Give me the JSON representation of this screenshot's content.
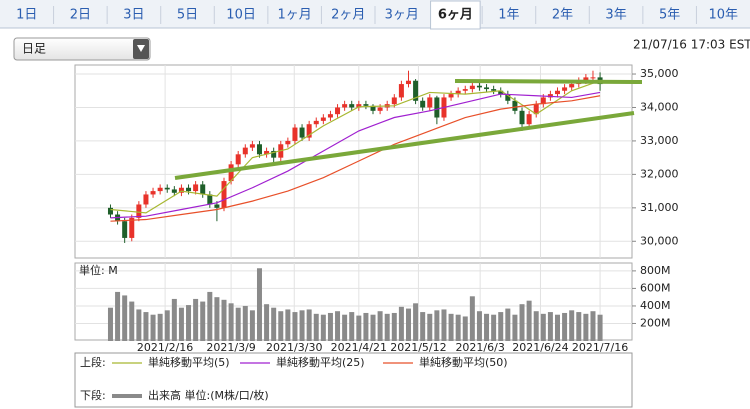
{
  "tabs": [
    "1日",
    "2日",
    "3日",
    "5日",
    "10日",
    "1ヶ月",
    "2ヶ月",
    "3ヶ月",
    "6ヶ月",
    "1年",
    "2年",
    "3年",
    "5年",
    "10年"
  ],
  "selected_tab": 8,
  "dropdown": "日足",
  "timestamp": "21/07/16 17:03 EST",
  "chart_data": [
    {
      "type": "candlestick",
      "legend_label": "上段:",
      "up_color": "#e8322a",
      "down_color": "#1f5f2a",
      "open": [
        31000,
        30800,
        30600,
        30100,
        30700,
        31100,
        31400,
        31500,
        31600,
        31550,
        31450,
        31600,
        31500,
        31700,
        31400,
        31100,
        31000,
        31800,
        32300,
        32600,
        32800,
        32900,
        32600,
        32700,
        32500,
        32900,
        33000,
        33400,
        33100,
        33500,
        33600,
        33700,
        33800,
        34000,
        34100,
        34000,
        34100,
        34050,
        33900,
        34000,
        34100,
        34300,
        34700,
        34800,
        34200,
        34000,
        34300,
        33700,
        34300,
        34400,
        34500,
        34550,
        34650,
        34600,
        34550,
        34500,
        34400,
        34200,
        33900,
        33500,
        33800,
        34100,
        34300,
        34400,
        34500,
        34600,
        34700,
        34800,
        34900,
        34900
      ],
      "high": [
        31100,
        30900,
        30700,
        30800,
        31200,
        31500,
        31600,
        31700,
        31700,
        31650,
        31700,
        31700,
        31800,
        31800,
        31500,
        31200,
        31900,
        32400,
        32700,
        32900,
        33000,
        33000,
        32800,
        32800,
        33000,
        33100,
        33500,
        33500,
        33600,
        33700,
        33800,
        33900,
        34100,
        34200,
        34200,
        34200,
        34200,
        34100,
        34100,
        34200,
        34400,
        34800,
        35100,
        34850,
        34300,
        34400,
        34350,
        34400,
        34500,
        34600,
        34650,
        34750,
        34750,
        34700,
        34650,
        34600,
        34500,
        34300,
        34000,
        33900,
        34200,
        34400,
        34500,
        34600,
        34700,
        34800,
        34900,
        35000,
        35100,
        35050
      ],
      "low": [
        30700,
        30500,
        29950,
        30000,
        30600,
        31000,
        31300,
        31400,
        31450,
        31350,
        31350,
        31400,
        31400,
        31300,
        31000,
        30600,
        30900,
        31700,
        32200,
        32500,
        32700,
        32500,
        32500,
        32300,
        32400,
        32800,
        32900,
        33000,
        33000,
        33400,
        33500,
        33600,
        33700,
        33900,
        33900,
        33900,
        33950,
        33800,
        33800,
        33900,
        34000,
        34200,
        34600,
        34100,
        33900,
        33900,
        33500,
        33600,
        34200,
        34300,
        34400,
        34450,
        34500,
        34450,
        34400,
        34300,
        34100,
        33800,
        33300,
        33400,
        33700,
        34000,
        34200,
        34300,
        34400,
        34500,
        34600,
        34700,
        34800,
        34500
      ],
      "close": [
        30800,
        30600,
        30100,
        30700,
        31100,
        31400,
        31500,
        31600,
        31550,
        31450,
        31600,
        31500,
        31700,
        31400,
        31100,
        31000,
        31800,
        32300,
        32600,
        32800,
        32900,
        32600,
        32700,
        32500,
        32900,
        33000,
        33400,
        33100,
        33500,
        33600,
        33700,
        33800,
        34000,
        34100,
        34000,
        34100,
        34050,
        33900,
        34000,
        34100,
        34300,
        34700,
        34800,
        34200,
        34000,
        34300,
        33700,
        34300,
        34400,
        34500,
        34550,
        34650,
        34600,
        34550,
        34500,
        34400,
        34200,
        33900,
        33500,
        33800,
        34100,
        34300,
        34400,
        34500,
        34600,
        34700,
        34800,
        34900,
        34900,
        34700
      ],
      "series": [
        {
          "name": "単純移動平均(5)",
          "color": "#a8b832",
          "x": [
            0,
            5,
            10,
            15,
            20,
            25,
            30,
            35,
            40,
            45,
            50,
            55,
            60,
            65,
            69
          ],
          "values": [
            30950,
            30850,
            31500,
            31350,
            32500,
            32760,
            33450,
            34020,
            34050,
            34450,
            34400,
            34500,
            33800,
            34500,
            34800
          ]
        },
        {
          "name": "単純移動平均(25)",
          "color": "#a020d0",
          "x": [
            0,
            5,
            10,
            15,
            20,
            25,
            30,
            35,
            40,
            45,
            50,
            55,
            60,
            65,
            69
          ],
          "values": [
            30700,
            30750,
            30950,
            31150,
            31600,
            32100,
            32700,
            33300,
            33700,
            33900,
            34150,
            34400,
            34350,
            34300,
            34450
          ]
        },
        {
          "name": "単純移動平均(50)",
          "color": "#e8502a",
          "x": [
            0,
            5,
            10,
            15,
            20,
            25,
            30,
            35,
            40,
            45,
            50,
            55,
            60,
            65,
            69
          ],
          "values": [
            30600,
            30650,
            30800,
            30950,
            31200,
            31500,
            31900,
            32400,
            32900,
            33300,
            33700,
            33950,
            34100,
            34200,
            34350
          ]
        }
      ],
      "xlim": [
        -5,
        73.5
      ],
      "ylim": [
        29500,
        35270
      ],
      "yticks": [
        {
          "value": 30000,
          "label": "30,000"
        },
        {
          "value": 31000,
          "label": "31,000"
        },
        {
          "value": 32000,
          "label": "32,000"
        },
        {
          "value": 33000,
          "label": "33,000"
        },
        {
          "value": 34000,
          "label": "34,000"
        },
        {
          "value": 35000,
          "label": "35,000"
        }
      ],
      "grid": true
    },
    {
      "type": "bar",
      "legend_label": "下段:",
      "unit_label": "単位: M",
      "series": [
        {
          "name": "出来高 単位:(M株/口/枚)",
          "color": "#8a8a8a",
          "values": [
            380,
            560,
            520,
            450,
            360,
            330,
            300,
            310,
            350,
            480,
            380,
            410,
            480,
            450,
            560,
            500,
            470,
            430,
            380,
            400,
            350,
            830,
            420,
            380,
            340,
            360,
            330,
            350,
            360,
            310,
            300,
            320,
            340,
            300,
            330,
            290,
            320,
            300,
            340,
            310,
            320,
            390,
            370,
            430,
            330,
            310,
            350,
            360,
            310,
            300,
            280,
            510,
            340,
            310,
            300,
            330,
            370,
            300,
            420,
            460,
            340,
            310,
            330,
            300,
            320,
            350,
            330,
            310,
            340,
            300
          ]
        }
      ],
      "xlim": [
        -5,
        73.5
      ],
      "xticks": [
        {
          "value": 7.7,
          "label": "2021/2/16"
        },
        {
          "value": 17,
          "label": "2021/3/9"
        },
        {
          "value": 25.9,
          "label": "2021/3/30"
        },
        {
          "value": 35,
          "label": "2021/4/21"
        },
        {
          "value": 43.4,
          "label": "2021/5/12"
        },
        {
          "value": 52.1,
          "label": "2021/6/3"
        },
        {
          "value": 60.6,
          "label": "2021/6/24"
        },
        {
          "value": 69,
          "label": "2021/7/16"
        }
      ],
      "ylim": [
        0,
        890
      ],
      "yticks": [
        {
          "value": 200,
          "label": "200M"
        },
        {
          "value": 400,
          "label": "400M"
        },
        {
          "value": 600,
          "label": "600M"
        },
        {
          "value": 800,
          "label": "800M"
        }
      ],
      "grid": true
    }
  ]
}
